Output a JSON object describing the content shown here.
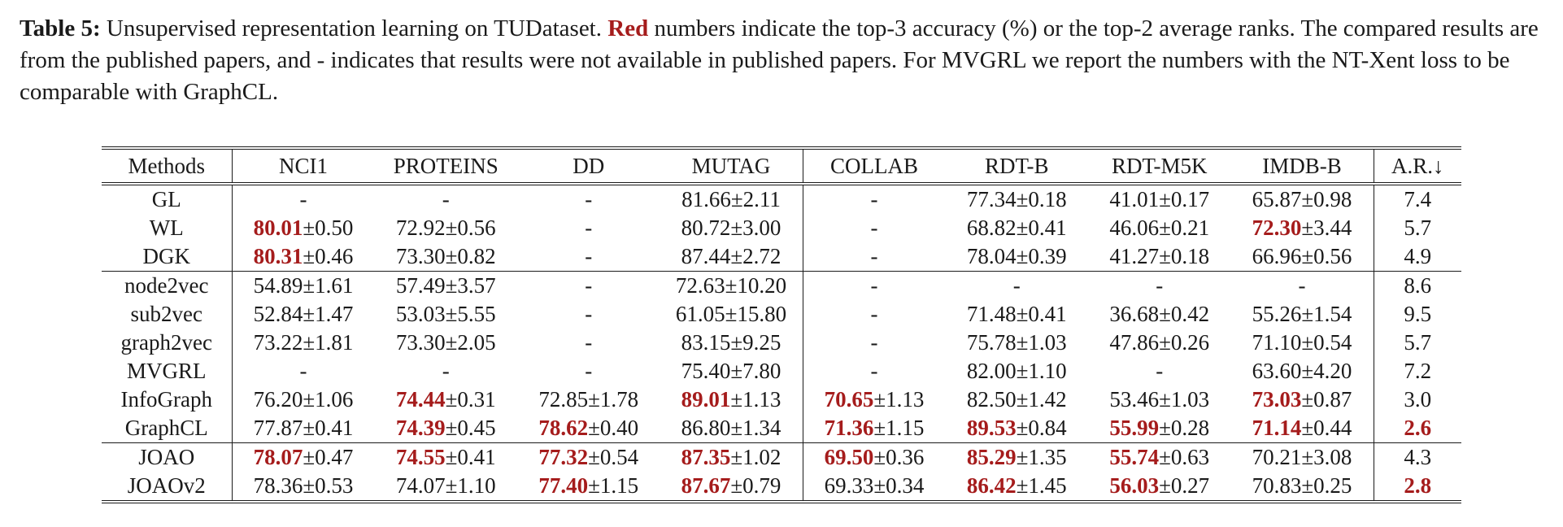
{
  "caption": {
    "label": "Table 5:",
    "text_before_red": " Unsupervised representation learning on TUDataset. ",
    "red_word": "Red",
    "text_after_red": " numbers indicate the top-3 accuracy (%) or the top-2 average ranks. The compared results are from the published papers, and - indicates that results were not available in published papers. For MVGRL we report the numbers with the NT-Xent loss to be comparable with GraphCL."
  },
  "table": {
    "headers": [
      "Methods",
      "NCI1",
      "PROTEINS",
      "DD",
      "MUTAG",
      "COLLAB",
      "RDT-B",
      "RDT-M5K",
      "IMDB-B",
      "A.R.↓"
    ],
    "groups": [
      {
        "rows": [
          {
            "method": "GL",
            "cells": [
              {
                "mean": "-",
                "std": ""
              },
              {
                "mean": "-",
                "std": ""
              },
              {
                "mean": "-",
                "std": ""
              },
              {
                "mean": "81.66",
                "std": "±2.11"
              },
              {
                "mean": "-",
                "std": ""
              },
              {
                "mean": "77.34",
                "std": "±0.18"
              },
              {
                "mean": "41.01",
                "std": "±0.17"
              },
              {
                "mean": "65.87",
                "std": "±0.98"
              },
              {
                "mean": "7.4",
                "std": ""
              }
            ]
          },
          {
            "method": "WL",
            "cells": [
              {
                "mean": "80.01",
                "std": "±0.50",
                "best": true
              },
              {
                "mean": "72.92",
                "std": "±0.56"
              },
              {
                "mean": "-",
                "std": ""
              },
              {
                "mean": "80.72",
                "std": "±3.00"
              },
              {
                "mean": "-",
                "std": ""
              },
              {
                "mean": "68.82",
                "std": "±0.41"
              },
              {
                "mean": "46.06",
                "std": "±0.21"
              },
              {
                "mean": "72.30",
                "std": "±3.44",
                "best": true
              },
              {
                "mean": "5.7",
                "std": ""
              }
            ]
          },
          {
            "method": "DGK",
            "cells": [
              {
                "mean": "80.31",
                "std": "±0.46",
                "best": true
              },
              {
                "mean": "73.30",
                "std": "±0.82"
              },
              {
                "mean": "-",
                "std": ""
              },
              {
                "mean": "87.44",
                "std": "±2.72"
              },
              {
                "mean": "-",
                "std": ""
              },
              {
                "mean": "78.04",
                "std": "±0.39"
              },
              {
                "mean": "41.27",
                "std": "±0.18"
              },
              {
                "mean": "66.96",
                "std": "±0.56"
              },
              {
                "mean": "4.9",
                "std": ""
              }
            ]
          }
        ]
      },
      {
        "rows": [
          {
            "method": "node2vec",
            "cells": [
              {
                "mean": "54.89",
                "std": "±1.61"
              },
              {
                "mean": "57.49",
                "std": "±3.57"
              },
              {
                "mean": "-",
                "std": ""
              },
              {
                "mean": "72.63",
                "std": "±10.20"
              },
              {
                "mean": "-",
                "std": ""
              },
              {
                "mean": "-",
                "std": ""
              },
              {
                "mean": "-",
                "std": ""
              },
              {
                "mean": "-",
                "std": ""
              },
              {
                "mean": "8.6",
                "std": ""
              }
            ]
          },
          {
            "method": "sub2vec",
            "cells": [
              {
                "mean": "52.84",
                "std": "±1.47"
              },
              {
                "mean": "53.03",
                "std": "±5.55"
              },
              {
                "mean": "-",
                "std": ""
              },
              {
                "mean": "61.05",
                "std": "±15.80"
              },
              {
                "mean": "-",
                "std": ""
              },
              {
                "mean": "71.48",
                "std": "±0.41"
              },
              {
                "mean": "36.68",
                "std": "±0.42"
              },
              {
                "mean": "55.26",
                "std": "±1.54"
              },
              {
                "mean": "9.5",
                "std": ""
              }
            ]
          },
          {
            "method": "graph2vec",
            "cells": [
              {
                "mean": "73.22",
                "std": "±1.81"
              },
              {
                "mean": "73.30",
                "std": "±2.05"
              },
              {
                "mean": "-",
                "std": ""
              },
              {
                "mean": "83.15",
                "std": "±9.25"
              },
              {
                "mean": "-",
                "std": ""
              },
              {
                "mean": "75.78",
                "std": "±1.03"
              },
              {
                "mean": "47.86",
                "std": "±0.26"
              },
              {
                "mean": "71.10",
                "std": "±0.54"
              },
              {
                "mean": "5.7",
                "std": ""
              }
            ]
          },
          {
            "method": "MVGRL",
            "cells": [
              {
                "mean": "-",
                "std": ""
              },
              {
                "mean": "-",
                "std": ""
              },
              {
                "mean": "-",
                "std": ""
              },
              {
                "mean": "75.40",
                "std": "±7.80"
              },
              {
                "mean": "-",
                "std": ""
              },
              {
                "mean": "82.00",
                "std": "±1.10"
              },
              {
                "mean": "-",
                "std": ""
              },
              {
                "mean": "63.60",
                "std": "±4.20"
              },
              {
                "mean": "7.2",
                "std": ""
              }
            ]
          },
          {
            "method": "InfoGraph",
            "cells": [
              {
                "mean": "76.20",
                "std": "±1.06"
              },
              {
                "mean": "74.44",
                "std": "±0.31",
                "best": true
              },
              {
                "mean": "72.85",
                "std": "±1.78"
              },
              {
                "mean": "89.01",
                "std": "±1.13",
                "best": true
              },
              {
                "mean": "70.65",
                "std": "±1.13",
                "best": true
              },
              {
                "mean": "82.50",
                "std": "±1.42"
              },
              {
                "mean": "53.46",
                "std": "±1.03"
              },
              {
                "mean": "73.03",
                "std": "±0.87",
                "best": true
              },
              {
                "mean": "3.0",
                "std": ""
              }
            ]
          },
          {
            "method": "GraphCL",
            "cells": [
              {
                "mean": "77.87",
                "std": "±0.41"
              },
              {
                "mean": "74.39",
                "std": "±0.45",
                "best": true
              },
              {
                "mean": "78.62",
                "std": "±0.40",
                "best": true
              },
              {
                "mean": "86.80",
                "std": "±1.34"
              },
              {
                "mean": "71.36",
                "std": "±1.15",
                "best": true
              },
              {
                "mean": "89.53",
                "std": "±0.84",
                "best": true
              },
              {
                "mean": "55.99",
                "std": "±0.28",
                "best": true
              },
              {
                "mean": "71.14",
                "std": "±0.44",
                "best": true
              },
              {
                "mean": "2.6",
                "std": "",
                "best": true
              }
            ]
          }
        ]
      },
      {
        "rows": [
          {
            "method": "JOAO",
            "cells": [
              {
                "mean": "78.07",
                "std": "±0.47",
                "best": true
              },
              {
                "mean": "74.55",
                "std": "±0.41",
                "best": true
              },
              {
                "mean": "77.32",
                "std": "±0.54",
                "best": true
              },
              {
                "mean": "87.35",
                "std": "±1.02",
                "best": true
              },
              {
                "mean": "69.50",
                "std": "±0.36",
                "best": true
              },
              {
                "mean": "85.29",
                "std": "±1.35",
                "best": true
              },
              {
                "mean": "55.74",
                "std": "±0.63",
                "best": true
              },
              {
                "mean": "70.21",
                "std": "±3.08"
              },
              {
                "mean": "4.3",
                "std": ""
              }
            ]
          },
          {
            "method": "JOAOv2",
            "cells": [
              {
                "mean": "78.36",
                "std": "±0.53"
              },
              {
                "mean": "74.07",
                "std": "±1.10"
              },
              {
                "mean": "77.40",
                "std": "±1.15",
                "best": true
              },
              {
                "mean": "87.67",
                "std": "±0.79",
                "best": true
              },
              {
                "mean": "69.33",
                "std": "±0.34"
              },
              {
                "mean": "86.42",
                "std": "±1.45",
                "best": true
              },
              {
                "mean": "56.03",
                "std": "±0.27",
                "best": true
              },
              {
                "mean": "70.83",
                "std": "±0.25"
              },
              {
                "mean": "2.8",
                "std": "",
                "best": true
              }
            ]
          }
        ]
      }
    ]
  },
  "colors": {
    "highlight": "#a51c1c",
    "text": "#1a1a1a"
  }
}
